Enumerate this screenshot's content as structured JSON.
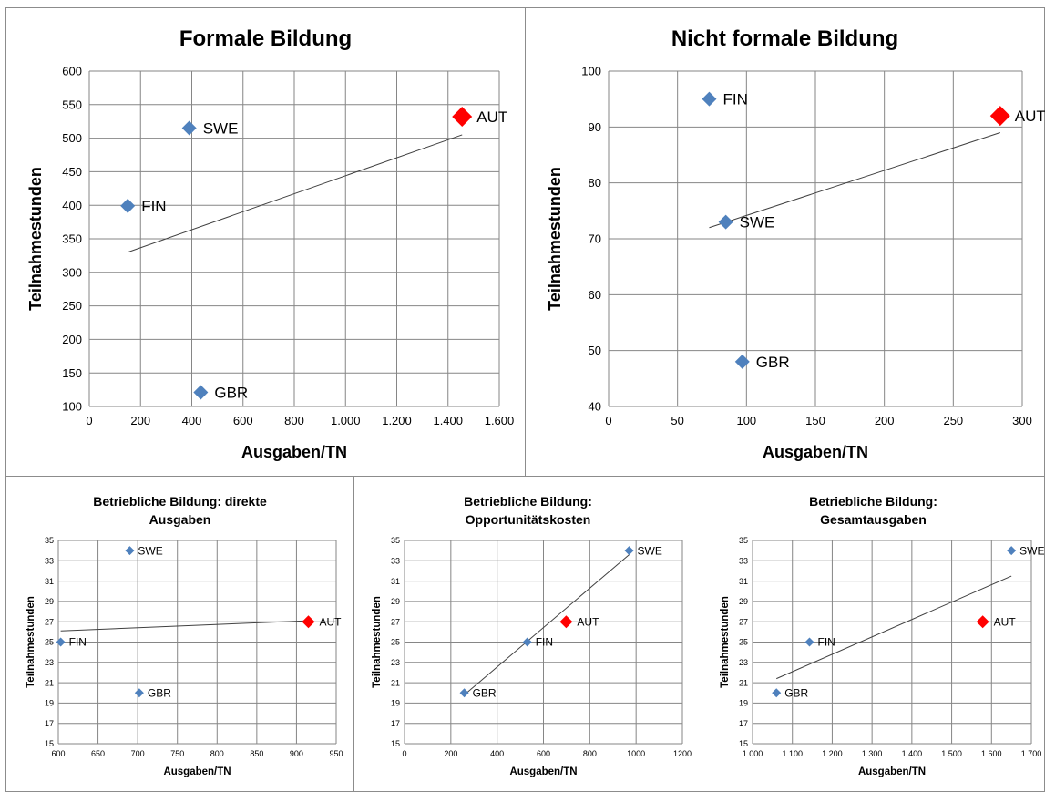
{
  "colors": {
    "marker": "#4f81bd",
    "highlight": "#ff0000",
    "grid": "#868686",
    "trendline": "#404040"
  },
  "chart_data": [
    {
      "type": "scatter",
      "title": "Formale Bildung",
      "xlabel": "Ausgaben/TN",
      "ylabel": "Teilnahmestunden",
      "xlim": [
        0,
        1600
      ],
      "ylim": [
        100,
        600
      ],
      "x_ticks": [
        0,
        200,
        400,
        600,
        800,
        1000,
        1200,
        1400,
        1600
      ],
      "x_tick_labels": [
        "0",
        "200",
        "400",
        "600",
        "800",
        "1.000",
        "1.200",
        "1.400",
        "1.600"
      ],
      "y_ticks": [
        100,
        150,
        200,
        250,
        300,
        350,
        400,
        450,
        500,
        550,
        600
      ],
      "y_tick_labels": [
        "100",
        "150",
        "200",
        "250",
        "300",
        "350",
        "400",
        "450",
        "500",
        "550",
        "600"
      ],
      "grid": true,
      "points": [
        {
          "label": "SWE",
          "x": 390,
          "y": 515,
          "highlight": false
        },
        {
          "label": "FIN",
          "x": 150,
          "y": 399,
          "highlight": false
        },
        {
          "label": "GBR",
          "x": 435,
          "y": 121,
          "highlight": false
        },
        {
          "label": "AUT",
          "x": 1455,
          "y": 532,
          "highlight": true
        }
      ],
      "trendline": [
        [
          150,
          330
        ],
        [
          1455,
          505
        ]
      ]
    },
    {
      "type": "scatter",
      "title": "Nicht formale Bildung",
      "xlabel": "Ausgaben/TN",
      "ylabel": "Teilnahmestunden",
      "xlim": [
        0,
        300
      ],
      "ylim": [
        40,
        100
      ],
      "x_ticks": [
        0,
        50,
        100,
        150,
        200,
        250,
        300
      ],
      "x_tick_labels": [
        "0",
        "50",
        "100",
        "150",
        "200",
        "250",
        "300"
      ],
      "y_ticks": [
        40,
        50,
        60,
        70,
        80,
        90,
        100
      ],
      "y_tick_labels": [
        "40",
        "50",
        "60",
        "70",
        "80",
        "90",
        "100"
      ],
      "grid": true,
      "points": [
        {
          "label": "FIN",
          "x": 73,
          "y": 95,
          "highlight": false
        },
        {
          "label": "SWE",
          "x": 85,
          "y": 73,
          "highlight": false
        },
        {
          "label": "GBR",
          "x": 97,
          "y": 48,
          "highlight": false
        },
        {
          "label": "AUT",
          "x": 284,
          "y": 92,
          "highlight": true
        }
      ],
      "trendline": [
        [
          73,
          72
        ],
        [
          284,
          89
        ]
      ]
    },
    {
      "type": "scatter",
      "title": "Betriebliche Bildung: direkte Ausgaben",
      "title_lines": [
        "Betriebliche Bildung: direkte",
        "Ausgaben"
      ],
      "xlabel": "Ausgaben/TN",
      "ylabel": "Teilnahmestunden",
      "xlim": [
        600,
        950
      ],
      "ylim": [
        15,
        35
      ],
      "x_ticks": [
        600,
        650,
        700,
        750,
        800,
        850,
        900,
        950
      ],
      "x_tick_labels": [
        "600",
        "650",
        "700",
        "750",
        "800",
        "850",
        "900",
        "950"
      ],
      "y_ticks": [
        15,
        17,
        19,
        21,
        23,
        25,
        27,
        29,
        31,
        33,
        35
      ],
      "y_tick_labels": [
        "15",
        "17",
        "19",
        "21",
        "23",
        "25",
        "27",
        "29",
        "31",
        "33",
        "35"
      ],
      "grid": true,
      "points": [
        {
          "label": "SWE",
          "x": 690,
          "y": 34,
          "highlight": false
        },
        {
          "label": "FIN",
          "x": 603,
          "y": 25,
          "highlight": false
        },
        {
          "label": "GBR",
          "x": 702,
          "y": 20,
          "highlight": false
        },
        {
          "label": "AUT",
          "x": 915,
          "y": 27,
          "highlight": true
        }
      ],
      "trendline": [
        [
          603,
          26.1
        ],
        [
          915,
          27.1
        ]
      ]
    },
    {
      "type": "scatter",
      "title": "Betriebliche Bildung: Opportunitätskosten",
      "title_lines": [
        "Betriebliche Bildung:",
        "Opportunitätskosten"
      ],
      "xlabel": "Ausgaben/TN",
      "ylabel": "Teilnahmestunden",
      "xlim": [
        0,
        1200
      ],
      "ylim": [
        15,
        35
      ],
      "x_ticks": [
        0,
        200,
        400,
        600,
        800,
        1000,
        1200
      ],
      "x_tick_labels": [
        "0",
        "200",
        "400",
        "600",
        "800",
        "1000",
        "1200"
      ],
      "y_ticks": [
        15,
        17,
        19,
        21,
        23,
        25,
        27,
        29,
        31,
        33,
        35
      ],
      "y_tick_labels": [
        "15",
        "17",
        "19",
        "21",
        "23",
        "25",
        "27",
        "29",
        "31",
        "33",
        "35"
      ],
      "grid": true,
      "points": [
        {
          "label": "SWE",
          "x": 970,
          "y": 34,
          "highlight": false
        },
        {
          "label": "FIN",
          "x": 530,
          "y": 25,
          "highlight": false
        },
        {
          "label": "GBR",
          "x": 258,
          "y": 20,
          "highlight": false
        },
        {
          "label": "AUT",
          "x": 698,
          "y": 27,
          "highlight": true
        }
      ],
      "trendline": [
        [
          258,
          19.8
        ],
        [
          970,
          33.6
        ]
      ]
    },
    {
      "type": "scatter",
      "title": "Betriebliche Bildung: Gesamtausgaben",
      "title_lines": [
        "Betriebliche Bildung:",
        "Gesamtausgaben"
      ],
      "xlabel": "Ausgaben/TN",
      "ylabel": "Teilnahmestunden",
      "xlim": [
        1000,
        1700
      ],
      "ylim": [
        15,
        35
      ],
      "x_ticks": [
        1000,
        1100,
        1200,
        1300,
        1400,
        1500,
        1600,
        1700
      ],
      "x_tick_labels": [
        "1.000",
        "1.100",
        "1.200",
        "1.300",
        "1.400",
        "1.500",
        "1.600",
        "1.700"
      ],
      "y_ticks": [
        15,
        17,
        19,
        21,
        23,
        25,
        27,
        29,
        31,
        33,
        35
      ],
      "y_tick_labels": [
        "15",
        "17",
        "19",
        "21",
        "23",
        "25",
        "27",
        "29",
        "31",
        "33",
        "35"
      ],
      "grid": true,
      "points": [
        {
          "label": "SWE",
          "x": 1650,
          "y": 34,
          "highlight": false
        },
        {
          "label": "FIN",
          "x": 1143,
          "y": 25,
          "highlight": false
        },
        {
          "label": "GBR",
          "x": 1060,
          "y": 20,
          "highlight": false
        },
        {
          "label": "AUT",
          "x": 1578,
          "y": 27,
          "highlight": true
        }
      ],
      "trendline": [
        [
          1060,
          21.4
        ],
        [
          1650,
          31.5
        ]
      ]
    }
  ]
}
